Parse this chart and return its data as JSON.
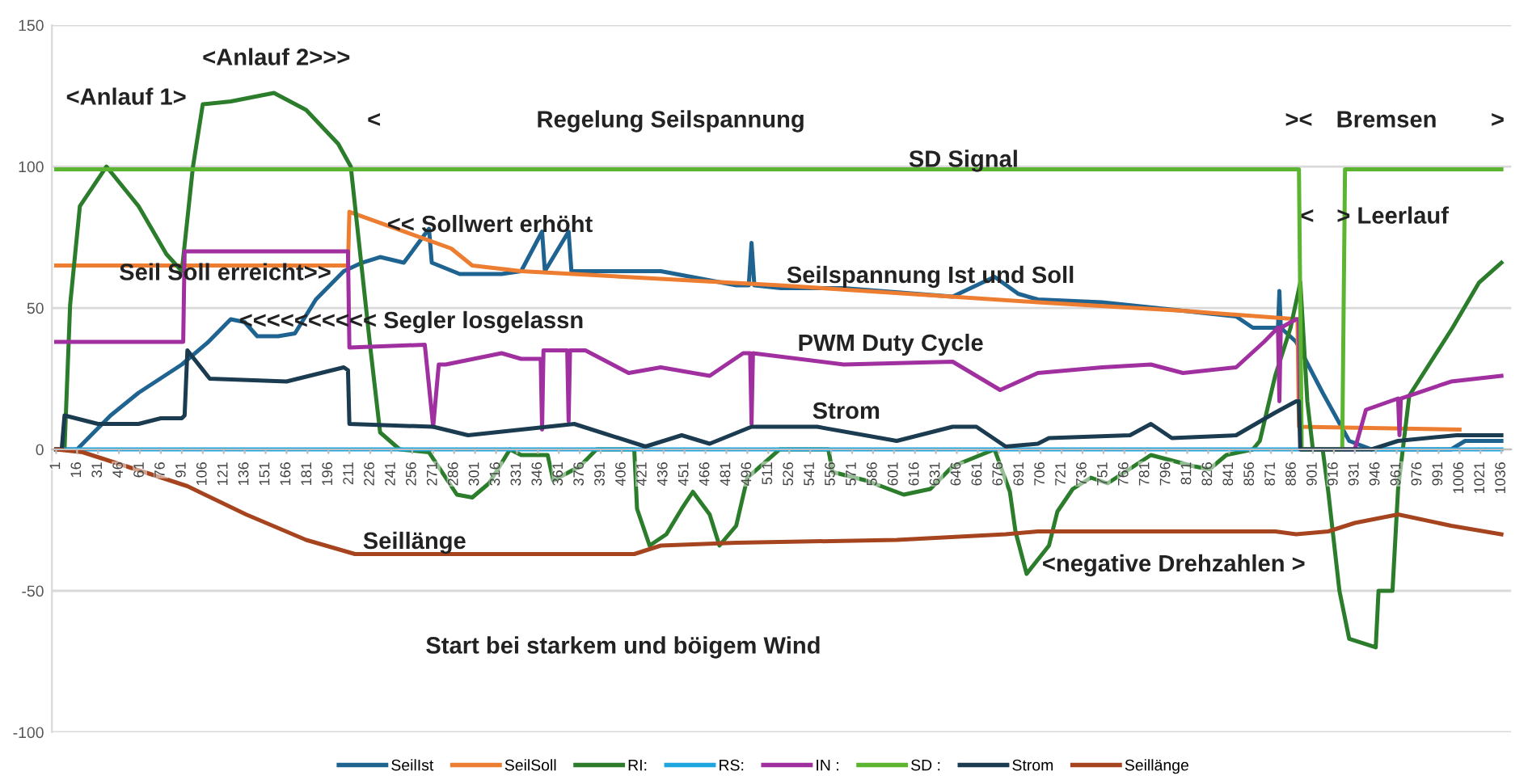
{
  "chart_data": {
    "type": "line",
    "xlim": [
      -2,
      1043
    ],
    "ylim": [
      -100,
      150
    ],
    "yticks": [
      -100,
      -50,
      0,
      50,
      100,
      150
    ],
    "xticks": [
      1,
      16,
      31,
      46,
      61,
      76,
      91,
      106,
      121,
      136,
      151,
      166,
      181,
      196,
      211,
      226,
      241,
      256,
      271,
      286,
      301,
      316,
      331,
      346,
      361,
      376,
      391,
      406,
      421,
      436,
      451,
      466,
      481,
      496,
      511,
      526,
      541,
      556,
      571,
      586,
      601,
      616,
      631,
      646,
      661,
      676,
      691,
      706,
      721,
      736,
      751,
      766,
      781,
      796,
      811,
      826,
      841,
      856,
      871,
      886,
      901,
      916,
      931,
      946,
      961,
      976,
      991,
      1006,
      1021,
      1036
    ],
    "grid": "y",
    "legend": "bottom",
    "series": [
      {
        "name": "SeilIst",
        "color": "#1f6391",
        "x": [
          1,
          16,
          40,
          60,
          91,
          110,
          126,
          136,
          145,
          160,
          172,
          187,
          207,
          220,
          233,
          250,
          268,
          270,
          290,
          320,
          334,
          349,
          351,
          368,
          370,
          403,
          434,
          488,
          497,
          499,
          501,
          520,
          565,
          643,
          673,
          690,
          704,
          750,
          808,
          846,
          858,
          876,
          877,
          878,
          889,
          908,
          927,
          943,
          1000,
          1010,
          1036
        ],
        "values": [
          0,
          0,
          12,
          20,
          30,
          38,
          46,
          45,
          40,
          40,
          41,
          53,
          63,
          66,
          68,
          66,
          78,
          66,
          62,
          62,
          63,
          77,
          63,
          77,
          63,
          63,
          63,
          58,
          58,
          73,
          58,
          57,
          57,
          54,
          61,
          55,
          53,
          52,
          49,
          47,
          43,
          43,
          56,
          43,
          38,
          20,
          3,
          0,
          0,
          3,
          3
        ]
      },
      {
        "name": "SeilSoll",
        "color": "#ed7d31",
        "x": [
          1,
          210,
          211,
          284,
          299,
          334,
          519,
          704,
          808,
          890,
          891,
          1006
        ],
        "values": [
          65,
          65,
          84,
          71,
          65,
          63,
          58,
          52,
          49,
          46,
          8,
          7
        ]
      },
      {
        "name": "RI:",
        "color": "#2b7d2b",
        "x": [
          1,
          7,
          11,
          18,
          37,
          60,
          80,
          91,
          99,
          106,
          126,
          157,
          180,
          203,
          212,
          226,
          233,
          247,
          268,
          288,
          299,
          311,
          326,
          334,
          353,
          357,
          376,
          388,
          415,
          417,
          426,
          438,
          449,
          457,
          469,
          476,
          488,
          496,
          519,
          554,
          557,
          581,
          608,
          627,
          643,
          673,
          684,
          688,
          696,
          712,
          718,
          729,
          742,
          754,
          785,
          816,
          827,
          839,
          858,
          863,
          874,
          885,
          892,
          897,
          901,
          908,
          912,
          920,
          927,
          946,
          948,
          958,
          962,
          970,
          1001,
          1020,
          1036
        ],
        "values": [
          0,
          0,
          51,
          86,
          100,
          86,
          69,
          63,
          100,
          122,
          123,
          126,
          120,
          108,
          100,
          36,
          6,
          0,
          -1,
          -16,
          -17,
          -12,
          0,
          -2,
          -2,
          -11,
          -6,
          0,
          0,
          -21,
          -34,
          -30,
          -21,
          -15,
          -23,
          -34,
          -27,
          -10,
          0,
          0,
          -8,
          -11,
          -16,
          -14,
          -6,
          0,
          -15,
          -29,
          -44,
          -34,
          -22,
          -14,
          -10,
          -12,
          -2,
          -6,
          -7,
          -2,
          0,
          3,
          26,
          43,
          59,
          17,
          0,
          0,
          -15,
          -50,
          -67,
          -70,
          -50,
          -50,
          -14,
          19,
          43,
          59,
          66
        ]
      },
      {
        "name": "RS:",
        "color": "#1ea6e0",
        "x": [
          1,
          1036
        ],
        "values": [
          0,
          0
        ]
      },
      {
        "name": "IN :",
        "color": "#a030a0",
        "x": [
          1,
          92,
          93,
          210,
          211,
          265,
          271,
          275,
          280,
          320,
          334,
          348,
          349,
          350,
          367,
          368,
          369,
          380,
          411,
          434,
          469,
          493,
          498,
          499,
          500,
          565,
          643,
          677,
          704,
          750,
          785,
          808,
          846,
          866,
          876,
          877,
          878,
          889,
          891,
          892,
          931,
          939,
          962,
          963,
          964,
          1000,
          1036
        ],
        "values": [
          38,
          38,
          70,
          70,
          36,
          37,
          8,
          30,
          30,
          34,
          32,
          32,
          7,
          35,
          35,
          10,
          35,
          35,
          27,
          29,
          26,
          34,
          34,
          9,
          34,
          30,
          31,
          21,
          27,
          29,
          30,
          27,
          29,
          38,
          43,
          17,
          43,
          46,
          46,
          0,
          0,
          14,
          18,
          5,
          18,
          24,
          26
        ]
      },
      {
        "name": "SD :",
        "color": "#5cb531",
        "x": [
          1,
          891,
          893,
          922,
          924,
          1036
        ],
        "values": [
          99,
          99,
          0,
          0,
          99,
          99
        ]
      },
      {
        "name": "Strom",
        "color": "#1b3b50",
        "x": [
          1,
          5,
          7,
          31,
          60,
          76,
          91,
          93,
          95,
          111,
          166,
          207,
          210,
          211,
          271,
          296,
          334,
          372,
          423,
          449,
          469,
          499,
          546,
          603,
          643,
          660,
          681,
          704,
          712,
          770,
          785,
          800,
          846,
          874,
          889,
          891,
          892,
          943,
          962,
          1004,
          1036
        ],
        "values": [
          0,
          0,
          12,
          9,
          9,
          11,
          11,
          12,
          35,
          25,
          24,
          29,
          28,
          9,
          8,
          5,
          7,
          9,
          1,
          5,
          2,
          8,
          8,
          3,
          8,
          8,
          1,
          2,
          4,
          5,
          9,
          4,
          5,
          13,
          17,
          17,
          0,
          0,
          3,
          5,
          5
        ]
      },
      {
        "name": "Seillänge",
        "color": "#a5441e",
        "x": [
          1,
          20,
          64,
          95,
          137,
          180,
          215,
          326,
          415,
          434,
          488,
          603,
          681,
          704,
          874,
          889,
          912,
          931,
          962,
          1000,
          1036
        ],
        "values": [
          0,
          -1,
          -8,
          -13,
          -23,
          -32,
          -37,
          -37,
          -37,
          -34,
          -33,
          -32,
          -30,
          -29,
          -29,
          -30,
          -29,
          -26,
          -23,
          -27,
          -30
        ]
      }
    ],
    "annotations": [
      "<Anlauf 1>",
      "<Anlauf 2>>>",
      "<",
      "Regelung Seilspannung",
      "><",
      "Bremsen",
      ">",
      "SD Signal",
      {
        "text": "<< Sollwert erhöht",
        "x": 238,
        "y": 79
      },
      {
        "text": "Seil Soll erreicht>>",
        "x": 46,
        "y": 62
      },
      {
        "text": "Seilspannung Ist und Soll",
        "x": 524,
        "y": 61
      },
      {
        "text": "<<<<<<<<<< Segler losgelassn",
        "x": 132,
        "y": 45
      },
      "PWM Duty Cycle",
      "Strom",
      "Seillänge",
      {
        "text": "<negative Drehzahlen >",
        "x": 707,
        "y": -41
      },
      {
        "text": "<",
        "x": 892,
        "y": 82
      },
      {
        "text": "> Leerlauf",
        "x": 918,
        "y": 82
      },
      "Start bei starkem und böigem Wind"
    ]
  }
}
